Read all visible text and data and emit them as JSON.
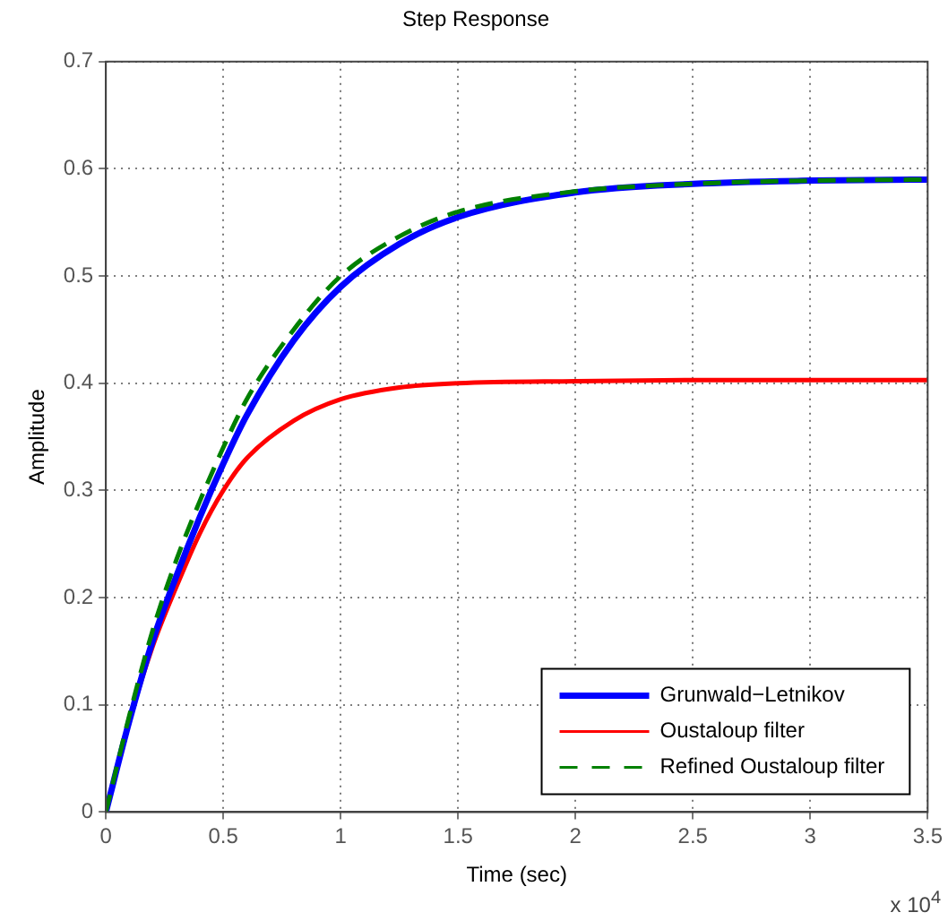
{
  "chart_data": {
    "type": "line",
    "title": "Step Response",
    "xlabel": "Time (sec)",
    "ylabel": "Amplitude",
    "x": [
      0,
      0.1,
      0.2,
      0.3,
      0.4,
      0.5,
      0.6,
      0.8,
      1.0,
      1.25,
      1.5,
      2,
      2.5,
      3,
      3.5
    ],
    "series": [
      {
        "name": "Grunwald−Letnikov",
        "color": "#0000ff",
        "values": [
          0,
          0.085,
          0.16,
          0.22,
          0.275,
          0.325,
          0.37,
          0.44,
          0.49,
          0.53,
          0.555,
          0.578,
          0.586,
          0.589,
          0.59
        ]
      },
      {
        "name": "Oustaloup filter",
        "color": "#ff0000",
        "values": [
          0,
          0.085,
          0.155,
          0.21,
          0.26,
          0.3,
          0.33,
          0.365,
          0.385,
          0.396,
          0.4,
          0.402,
          0.403,
          0.403,
          0.403
        ]
      },
      {
        "name": "Refined Oustaloup filter",
        "color": "#008000",
        "line_style": "dashed",
        "values": [
          0,
          0.09,
          0.17,
          0.235,
          0.29,
          0.34,
          0.385,
          0.45,
          0.5,
          0.537,
          0.56,
          0.579,
          0.586,
          0.589,
          0.59
        ]
      }
    ],
    "xlim": [
      0,
      3.5
    ],
    "xticks": [
      0,
      0.5,
      1,
      1.5,
      2,
      2.5,
      3,
      3.5
    ],
    "ylim": [
      0,
      0.7
    ],
    "yticks": [
      0,
      0.1,
      0.2,
      0.3,
      0.4,
      0.5,
      0.6,
      0.7
    ],
    "annotations": [
      "x 10$^{4}$"
    ],
    "grid": true,
    "legend": "bottom right",
    "line_style": "solid",
    "marker": "none"
  }
}
